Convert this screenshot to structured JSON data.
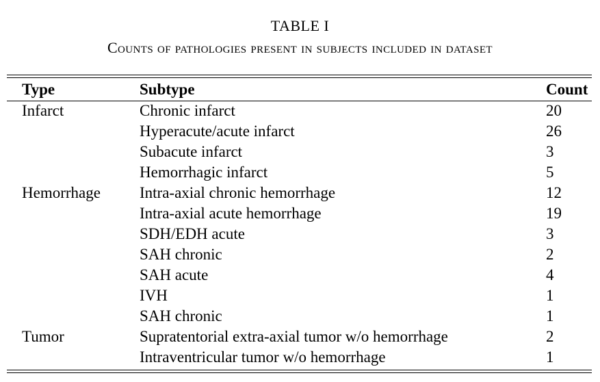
{
  "caption": {
    "label": "TABLE I",
    "title": "Counts of pathologies present in subjects included in dataset"
  },
  "table": {
    "headers": {
      "type": "Type",
      "subtype": "Subtype",
      "count": "Count"
    },
    "rows": [
      {
        "type": "Infarct",
        "subtype": "Chronic infarct",
        "count": "20"
      },
      {
        "type": "",
        "subtype": "Hyperacute/acute infarct",
        "count": "26"
      },
      {
        "type": "",
        "subtype": "Subacute infarct",
        "count": "3"
      },
      {
        "type": "",
        "subtype": "Hemorrhagic infarct",
        "count": "5"
      },
      {
        "type": "Hemorrhage",
        "subtype": "Intra-axial chronic hemorrhage",
        "count": "12"
      },
      {
        "type": "",
        "subtype": "Intra-axial acute hemorrhage",
        "count": "19"
      },
      {
        "type": "",
        "subtype": "SDH/EDH acute",
        "count": "3"
      },
      {
        "type": "",
        "subtype": "SAH chronic",
        "count": "2"
      },
      {
        "type": "",
        "subtype": "SAH acute",
        "count": "4"
      },
      {
        "type": "",
        "subtype": "IVH",
        "count": "1"
      },
      {
        "type": "",
        "subtype": "SAH chronic",
        "count": "1"
      },
      {
        "type": "Tumor",
        "subtype": "Supratentorial extra-axial tumor w/o hemorrhage",
        "count": "2"
      },
      {
        "type": "",
        "subtype": "Intraventricular tumor w/o hemorrhage",
        "count": "1"
      }
    ]
  }
}
